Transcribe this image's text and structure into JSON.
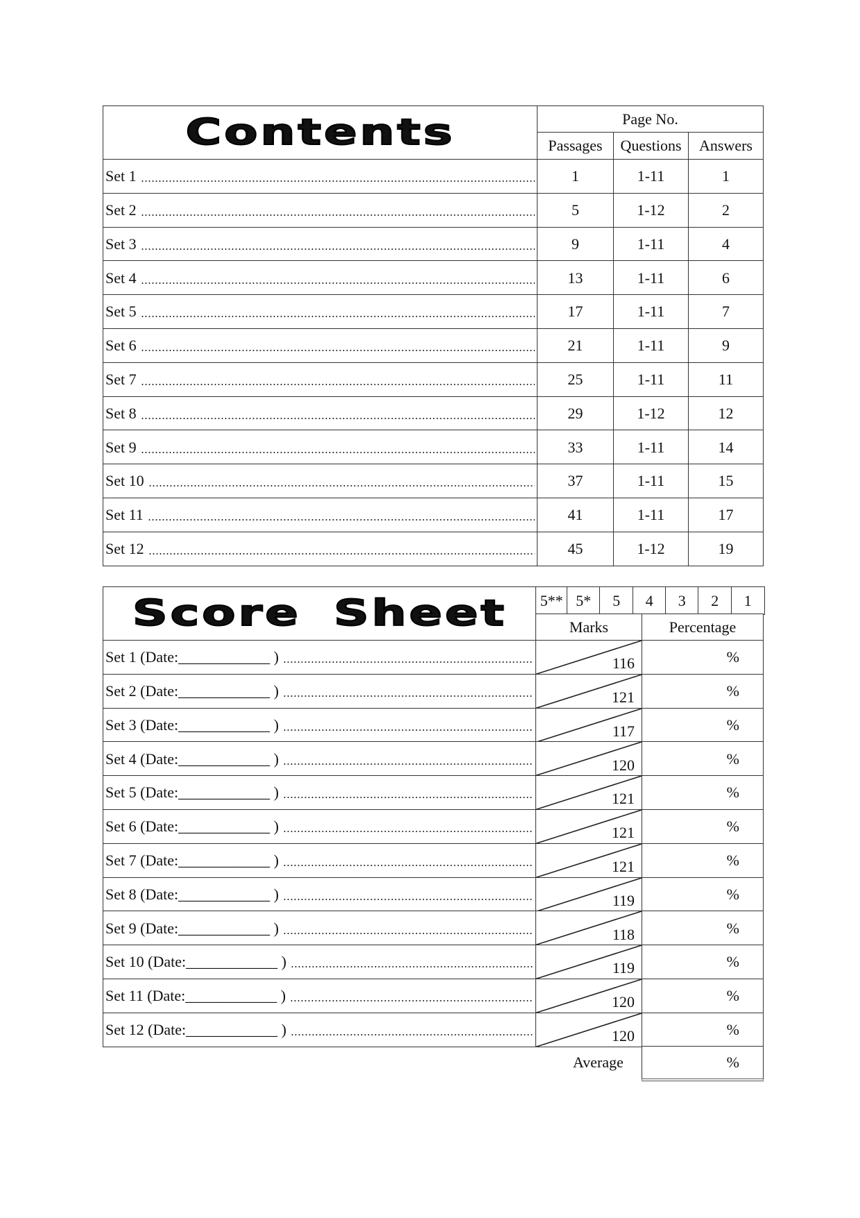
{
  "contents": {
    "title": "Contents",
    "page_no_label": "Page No.",
    "columns": [
      "Passages",
      "Questions",
      "Answers"
    ],
    "rows": [
      {
        "label": "Set 1",
        "passages": "1",
        "questions": "1-11",
        "answers": "1"
      },
      {
        "label": "Set 2",
        "passages": "5",
        "questions": "1-12",
        "answers": "2"
      },
      {
        "label": "Set 3",
        "passages": "9",
        "questions": "1-11",
        "answers": "4"
      },
      {
        "label": "Set 4",
        "passages": "13",
        "questions": "1-11",
        "answers": "6"
      },
      {
        "label": "Set 5",
        "passages": "17",
        "questions": "1-11",
        "answers": "7"
      },
      {
        "label": "Set 6",
        "passages": "21",
        "questions": "1-11",
        "answers": "9"
      },
      {
        "label": "Set 7",
        "passages": "25",
        "questions": "1-11",
        "answers": "11"
      },
      {
        "label": "Set 8",
        "passages": "29",
        "questions": "1-12",
        "answers": "12"
      },
      {
        "label": "Set 9",
        "passages": "33",
        "questions": "1-11",
        "answers": "14"
      },
      {
        "label": "Set 10",
        "passages": "37",
        "questions": "1-11",
        "answers": "15"
      },
      {
        "label": "Set 11",
        "passages": "41",
        "questions": "1-11",
        "answers": "17"
      },
      {
        "label": "Set 12",
        "passages": "45",
        "questions": "1-12",
        "answers": "19"
      }
    ]
  },
  "score_sheet": {
    "title": "Score Sheet",
    "grades": [
      "5**",
      "5*",
      "5",
      "4",
      "3",
      "2",
      "1"
    ],
    "marks_label": "Marks",
    "percentage_label": "Percentage",
    "percent_sign": "%",
    "average_label": "Average",
    "rows": [
      {
        "label": "Set 1 (Date:____________ )",
        "total": "116"
      },
      {
        "label": "Set 2 (Date:____________ )",
        "total": "121"
      },
      {
        "label": "Set 3 (Date:____________ )",
        "total": "117"
      },
      {
        "label": "Set 4 (Date:____________ )",
        "total": "120"
      },
      {
        "label": "Set 5 (Date:____________ )",
        "total": "121"
      },
      {
        "label": "Set 6 (Date:____________ )",
        "total": "121"
      },
      {
        "label": "Set 7 (Date:____________ )",
        "total": "121"
      },
      {
        "label": "Set 8 (Date:____________ )",
        "total": "119"
      },
      {
        "label": "Set 9 (Date:____________ )",
        "total": "118"
      },
      {
        "label": "Set 10 (Date:____________ )",
        "total": "119"
      },
      {
        "label": "Set 11 (Date:____________ )",
        "total": "120"
      },
      {
        "label": "Set 12 (Date:____________ )",
        "total": "120"
      }
    ]
  }
}
